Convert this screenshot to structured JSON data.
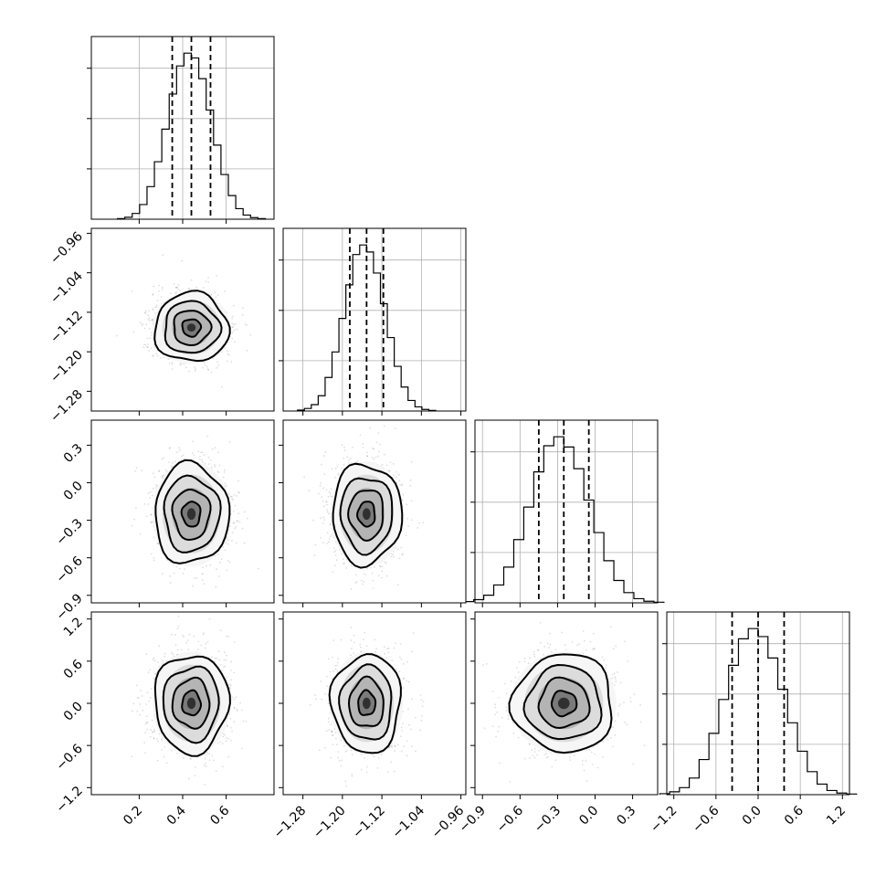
{
  "chart_data": {
    "type": "corner",
    "n_params": 4,
    "grid": true,
    "quantiles": [
      0.16,
      0.5,
      0.84
    ],
    "params": [
      {
        "range": [
          -0.02,
          0.82
        ],
        "ticks": [
          0.2,
          0.4,
          0.6
        ],
        "tick_labels": [
          "0.2",
          "0.4",
          "0.6"
        ],
        "mean": 0.44,
        "sd": 0.085,
        "quantile_values": [
          0.352,
          0.44,
          0.528
        ]
      },
      {
        "range": [
          -1.32,
          -0.95
        ],
        "ticks": [
          -1.28,
          -1.2,
          -1.12,
          -1.04,
          -0.96
        ],
        "tick_labels": [
          "−1.28",
          "−1.20",
          "−1.12",
          "−1.04",
          "−0.96"
        ],
        "mean": -1.151,
        "sd": 0.035,
        "quantile_values": [
          -1.185,
          -1.151,
          -1.117
        ]
      },
      {
        "range": [
          -0.96,
          0.5
        ],
        "ticks": [
          -0.9,
          -0.6,
          -0.3,
          0.0,
          0.3
        ],
        "tick_labels": [
          "−0.9",
          "−0.6",
          "−0.3",
          "0.0",
          "0.3"
        ],
        "mean": -0.25,
        "sd": 0.2,
        "quantile_values": [
          -0.45,
          -0.25,
          -0.05
        ]
      },
      {
        "range": [
          -1.3,
          1.3
        ],
        "ticks": [
          -1.2,
          -0.6,
          0.0,
          0.6,
          1.2
        ],
        "tick_labels": [
          "−1.2",
          "−0.6",
          "0.0",
          "0.6",
          "1.2"
        ],
        "mean": 0.0,
        "sd": 0.35,
        "quantile_values": [
          -0.37,
          0.0,
          0.37
        ]
      }
    ],
    "histograms": [
      {
        "param": 0,
        "bins": 20,
        "counts": [
          2,
          6,
          18,
          46,
          102,
          180,
          282,
          392,
          480,
          520,
          505,
          440,
          342,
          232,
          140,
          74,
          33,
          13,
          5,
          2
        ]
      },
      {
        "param": 1,
        "bins": 20,
        "counts": [
          3,
          8,
          20,
          48,
          105,
          185,
          290,
          395,
          490,
          520,
          498,
          432,
          336,
          230,
          140,
          75,
          33,
          13,
          5,
          2
        ]
      },
      {
        "param": 2,
        "bins": 20,
        "counts": [
          4,
          10,
          24,
          56,
          112,
          198,
          300,
          410,
          492,
          520,
          488,
          420,
          322,
          220,
          132,
          70,
          32,
          13,
          5,
          2
        ]
      },
      {
        "param": 3,
        "bins": 20,
        "counts": [
          3,
          9,
          22,
          52,
          110,
          192,
          298,
          405,
          488,
          520,
          495,
          428,
          330,
          225,
          136,
          72,
          33,
          13,
          5,
          2
        ]
      }
    ],
    "density_panels": [
      {
        "x_param": 0,
        "y_param": 1
      },
      {
        "x_param": 0,
        "y_param": 2
      },
      {
        "x_param": 1,
        "y_param": 2
      },
      {
        "x_param": 0,
        "y_param": 3
      },
      {
        "x_param": 1,
        "y_param": 3
      },
      {
        "x_param": 2,
        "y_param": 3
      }
    ],
    "contour_levels_sigma": [
      0.5,
      1.0,
      1.5,
      2.0
    ],
    "colors": {
      "line": "#000000",
      "grid": "#b0b0b0",
      "points": "#888888"
    }
  }
}
